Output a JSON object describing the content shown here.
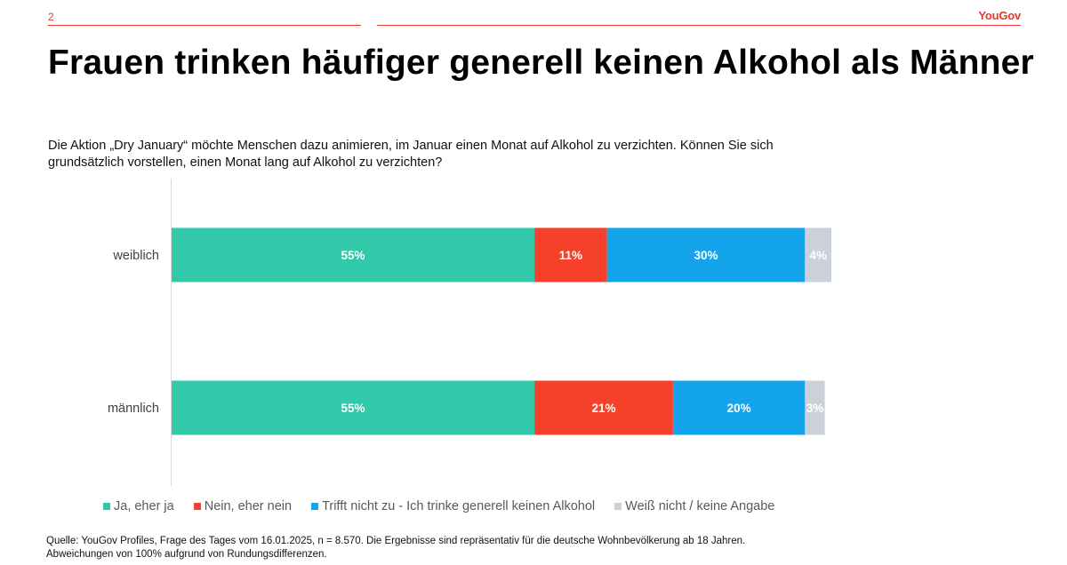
{
  "header": {
    "page_number": "2",
    "brand": "YouGov"
  },
  "title": "Frauen trinken häufiger generell keinen Alkohol als Männer",
  "subtitle": "Die Aktion „Dry January“ möchte Menschen dazu animieren, im Januar einen Monat auf Alkohol zu verzichten. Können Sie sich grundsätzlich vorstellen, einen Monat lang auf Alkohol zu verzichten?",
  "chart_data": {
    "type": "bar",
    "orientation": "horizontal",
    "stacked": true,
    "categories": [
      "weiblich",
      "männlich"
    ],
    "series": [
      {
        "name": "Ja, eher ja",
        "values": [
          55,
          55
        ],
        "color": "#31c9a9",
        "label_color": "#ffffff"
      },
      {
        "name": "Nein, eher nein",
        "values": [
          11,
          21
        ],
        "color": "#f6402a",
        "label_color": "#ffffff"
      },
      {
        "name": "Trifft nicht zu - Ich trinke generell keinen Alkohol",
        "values": [
          30,
          20
        ],
        "color": "#14a4ec",
        "label_color": "#ffffff"
      },
      {
        "name": "Weiß nicht / keine Angabe",
        "values": [
          4,
          3
        ],
        "color": "#ccd0d8",
        "label_color": "#ffffff"
      }
    ],
    "value_suffix": "%",
    "xlim": [
      0,
      100
    ],
    "grid": false,
    "legend_position": "bottom"
  },
  "footer": {
    "source": "Quelle: YouGov Profiles, Frage des Tages vom 16.01.2025, n = 8.570. Die Ergebnisse sind repräsentativ für die deutsche Wohnbevölkerung ab 18 Jahren.",
    "note": "Abweichungen von 100% aufgrund von Rundungsdifferenzen."
  }
}
